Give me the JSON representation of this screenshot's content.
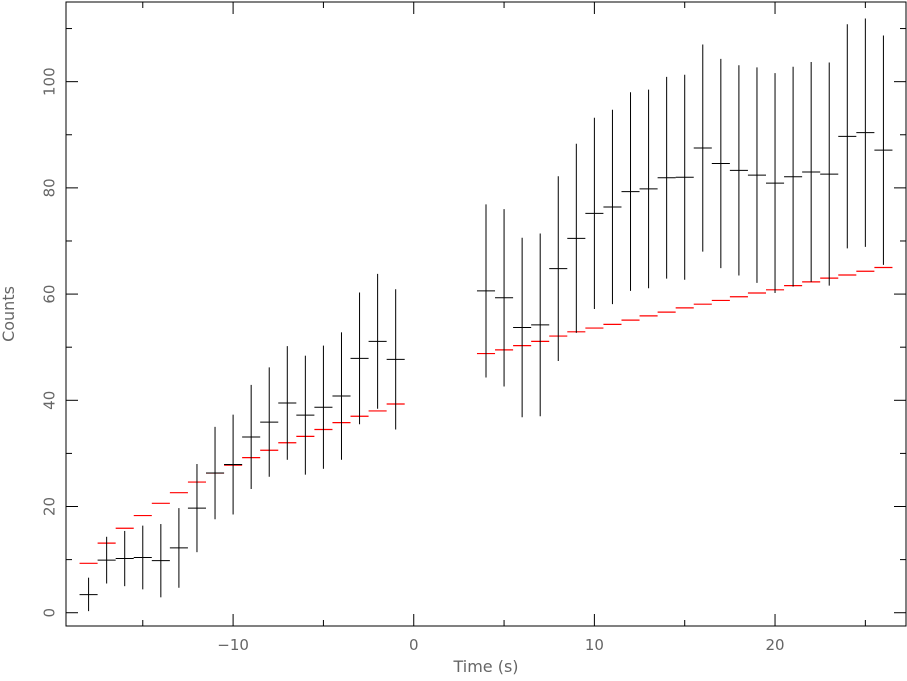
{
  "chart_data": {
    "type": "scatter",
    "title": "",
    "xlabel": "Time (s)",
    "ylabel": "Counts",
    "xlim": [
      -19.25,
      27.25
    ],
    "ylim": [
      -2.5,
      115
    ],
    "grid": false,
    "x_ticks": [
      -10,
      0,
      10,
      20
    ],
    "x_tick_labels": [
      "−10",
      "0",
      "10",
      "20"
    ],
    "y_ticks": [
      0,
      20,
      40,
      60,
      80,
      100
    ],
    "y_tick_labels": [
      "0",
      "20",
      "40",
      "60",
      "80",
      "100"
    ],
    "series": [
      {
        "color": "#000000",
        "style": "crosses-with-errorbars",
        "bin_halfwidth": 0.5,
        "points": [
          {
            "x": -18,
            "y": 3.4,
            "lo": 0.3,
            "hi": 6.6
          },
          {
            "x": -17,
            "y": 9.9,
            "lo": 5.5,
            "hi": 14.3
          },
          {
            "x": -16,
            "y": 10.2,
            "lo": 5.0,
            "hi": 15.4
          },
          {
            "x": -15,
            "y": 10.4,
            "lo": 4.4,
            "hi": 16.4
          },
          {
            "x": -14,
            "y": 9.8,
            "lo": 2.9,
            "hi": 16.7
          },
          {
            "x": -13,
            "y": 12.2,
            "lo": 4.7,
            "hi": 19.7
          },
          {
            "x": -12,
            "y": 19.7,
            "lo": 11.4,
            "hi": 28.0
          },
          {
            "x": -11,
            "y": 26.3,
            "lo": 17.6,
            "hi": 35.0
          },
          {
            "x": -10,
            "y": 27.9,
            "lo": 18.5,
            "hi": 37.3
          },
          {
            "x": -9,
            "y": 33.1,
            "lo": 23.3,
            "hi": 42.9
          },
          {
            "x": -8,
            "y": 35.9,
            "lo": 25.6,
            "hi": 46.2
          },
          {
            "x": -7,
            "y": 39.5,
            "lo": 28.8,
            "hi": 50.2
          },
          {
            "x": -6,
            "y": 37.2,
            "lo": 26.0,
            "hi": 48.4
          },
          {
            "x": -5,
            "y": 38.7,
            "lo": 27.1,
            "hi": 50.3
          },
          {
            "x": -4,
            "y": 40.8,
            "lo": 28.8,
            "hi": 52.8
          },
          {
            "x": -3,
            "y": 47.9,
            "lo": 35.5,
            "hi": 60.3
          },
          {
            "x": -2,
            "y": 51.1,
            "lo": 38.4,
            "hi": 63.8
          },
          {
            "x": -1,
            "y": 47.7,
            "lo": 34.5,
            "hi": 60.9
          },
          {
            "x": 4,
            "y": 60.6,
            "lo": 44.3,
            "hi": 76.9
          },
          {
            "x": 5,
            "y": 59.3,
            "lo": 42.6,
            "hi": 76.0
          },
          {
            "x": 6,
            "y": 53.7,
            "lo": 36.8,
            "hi": 70.6
          },
          {
            "x": 7,
            "y": 54.2,
            "lo": 37.0,
            "hi": 71.4
          },
          {
            "x": 8,
            "y": 64.8,
            "lo": 47.4,
            "hi": 82.2
          },
          {
            "x": 9,
            "y": 70.5,
            "lo": 52.7,
            "hi": 88.3
          },
          {
            "x": 10,
            "y": 75.2,
            "lo": 57.2,
            "hi": 93.2
          },
          {
            "x": 11,
            "y": 76.4,
            "lo": 58.1,
            "hi": 94.7
          },
          {
            "x": 12,
            "y": 79.3,
            "lo": 60.6,
            "hi": 98.0
          },
          {
            "x": 13,
            "y": 79.8,
            "lo": 61.1,
            "hi": 98.5
          },
          {
            "x": 14,
            "y": 81.9,
            "lo": 62.9,
            "hi": 100.9
          },
          {
            "x": 15,
            "y": 82.0,
            "lo": 62.7,
            "hi": 101.3
          },
          {
            "x": 16,
            "y": 87.5,
            "lo": 68.0,
            "hi": 107.0
          },
          {
            "x": 17,
            "y": 84.6,
            "lo": 64.9,
            "hi": 104.3
          },
          {
            "x": 18,
            "y": 83.3,
            "lo": 63.5,
            "hi": 103.1
          },
          {
            "x": 19,
            "y": 82.4,
            "lo": 62.1,
            "hi": 102.7
          },
          {
            "x": 20,
            "y": 80.9,
            "lo": 60.2,
            "hi": 101.6
          },
          {
            "x": 21,
            "y": 82.1,
            "lo": 61.4,
            "hi": 102.8
          },
          {
            "x": 22,
            "y": 83.0,
            "lo": 62.3,
            "hi": 103.7
          },
          {
            "x": 23,
            "y": 82.6,
            "lo": 61.6,
            "hi": 103.6
          },
          {
            "x": 24,
            "y": 89.7,
            "lo": 68.6,
            "hi": 110.8
          },
          {
            "x": 25,
            "y": 90.4,
            "lo": 68.9,
            "hi": 111.9
          },
          {
            "x": 26,
            "y": 87.1,
            "lo": 65.5,
            "hi": 108.7
          }
        ]
      },
      {
        "color": "#ff0000",
        "style": "horizontal-steps",
        "bin_halfwidth": 0.5,
        "points": [
          {
            "x": -18,
            "y": 9.3
          },
          {
            "x": -17,
            "y": 13.1
          },
          {
            "x": -16,
            "y": 15.9
          },
          {
            "x": -15,
            "y": 18.3
          },
          {
            "x": -14,
            "y": 20.6
          },
          {
            "x": -13,
            "y": 22.6
          },
          {
            "x": -12,
            "y": 24.6
          },
          {
            "x": -11,
            "y": 26.3
          },
          {
            "x": -10,
            "y": 27.8
          },
          {
            "x": -9,
            "y": 29.2
          },
          {
            "x": -8,
            "y": 30.6
          },
          {
            "x": -7,
            "y": 32.0
          },
          {
            "x": -6,
            "y": 33.2
          },
          {
            "x": -5,
            "y": 34.5
          },
          {
            "x": -4,
            "y": 35.8
          },
          {
            "x": -3,
            "y": 37.0
          },
          {
            "x": -2,
            "y": 38.0
          },
          {
            "x": -1,
            "y": 39.3
          },
          {
            "x": 4,
            "y": 48.8
          },
          {
            "x": 5,
            "y": 49.5
          },
          {
            "x": 6,
            "y": 50.3
          },
          {
            "x": 7,
            "y": 51.1
          },
          {
            "x": 8,
            "y": 52.1
          },
          {
            "x": 9,
            "y": 52.9
          },
          {
            "x": 10,
            "y": 53.6
          },
          {
            "x": 11,
            "y": 54.3
          },
          {
            "x": 12,
            "y": 55.1
          },
          {
            "x": 13,
            "y": 55.9
          },
          {
            "x": 14,
            "y": 56.6
          },
          {
            "x": 15,
            "y": 57.4
          },
          {
            "x": 16,
            "y": 58.1
          },
          {
            "x": 17,
            "y": 58.8
          },
          {
            "x": 18,
            "y": 59.5
          },
          {
            "x": 19,
            "y": 60.2
          },
          {
            "x": 20,
            "y": 60.8
          },
          {
            "x": 21,
            "y": 61.6
          },
          {
            "x": 22,
            "y": 62.3
          },
          {
            "x": 23,
            "y": 63.0
          },
          {
            "x": 24,
            "y": 63.6
          },
          {
            "x": 25,
            "y": 64.3
          },
          {
            "x": 26,
            "y": 65.0
          }
        ]
      }
    ]
  }
}
